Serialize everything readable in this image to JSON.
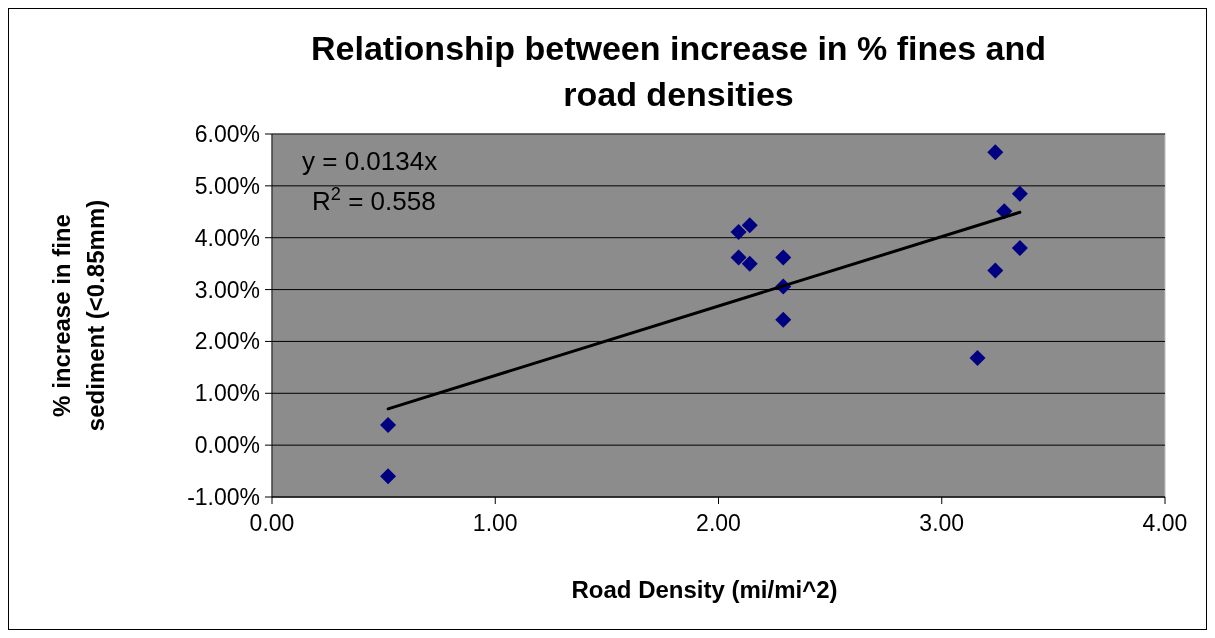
{
  "chart_data": {
    "type": "scatter",
    "title": "Relationship between increase in % fines and road densities",
    "xlabel": "Road Density (mi/mi^2)",
    "ylabel": "% increase in fine sediment (<0.85mm)",
    "annotations": [
      "y = 0.0134x",
      "R$^{2}$ = 0.558"
    ],
    "series": [
      {
        "color": "#000080",
        "marker": "diamond",
        "x": [
          0.52,
          0.52,
          2.09,
          2.14,
          2.09,
          2.14,
          2.29,
          2.29,
          2.29,
          3.24,
          3.35,
          3.28,
          3.35,
          3.24,
          3.16
        ],
        "values": [
          0.39,
          -0.6,
          4.11,
          4.24,
          3.62,
          3.5,
          3.62,
          3.06,
          2.42,
          5.65,
          4.85,
          4.51,
          3.8,
          3.37,
          1.68
        ]
      },
      {
        "type": "line",
        "color": "#000000",
        "marker": "none",
        "x": [
          0.52,
          3.35
        ],
        "values": [
          0.7,
          4.49
        ]
      }
    ],
    "xlim": [
      0,
      4
    ],
    "xticks": [
      {
        "value": 0,
        "label": "0.00"
      },
      {
        "value": 1,
        "label": "1.00"
      },
      {
        "value": 2,
        "label": "2.00"
      },
      {
        "value": 3,
        "label": "3.00"
      },
      {
        "value": 4,
        "label": "4.00"
      }
    ],
    "ylim": [
      -1,
      6
    ],
    "yticks": [
      {
        "value": -1,
        "label": "-1.00%"
      },
      {
        "value": 0,
        "label": "0.00%"
      },
      {
        "value": 1,
        "label": "1.00%"
      },
      {
        "value": 2,
        "label": "2.00%"
      },
      {
        "value": 3,
        "label": "3.00%"
      },
      {
        "value": 4,
        "label": "4.00%"
      },
      {
        "value": 5,
        "label": "5.00%"
      },
      {
        "value": 6,
        "label": "6.00%"
      }
    ],
    "grid": "y"
  }
}
